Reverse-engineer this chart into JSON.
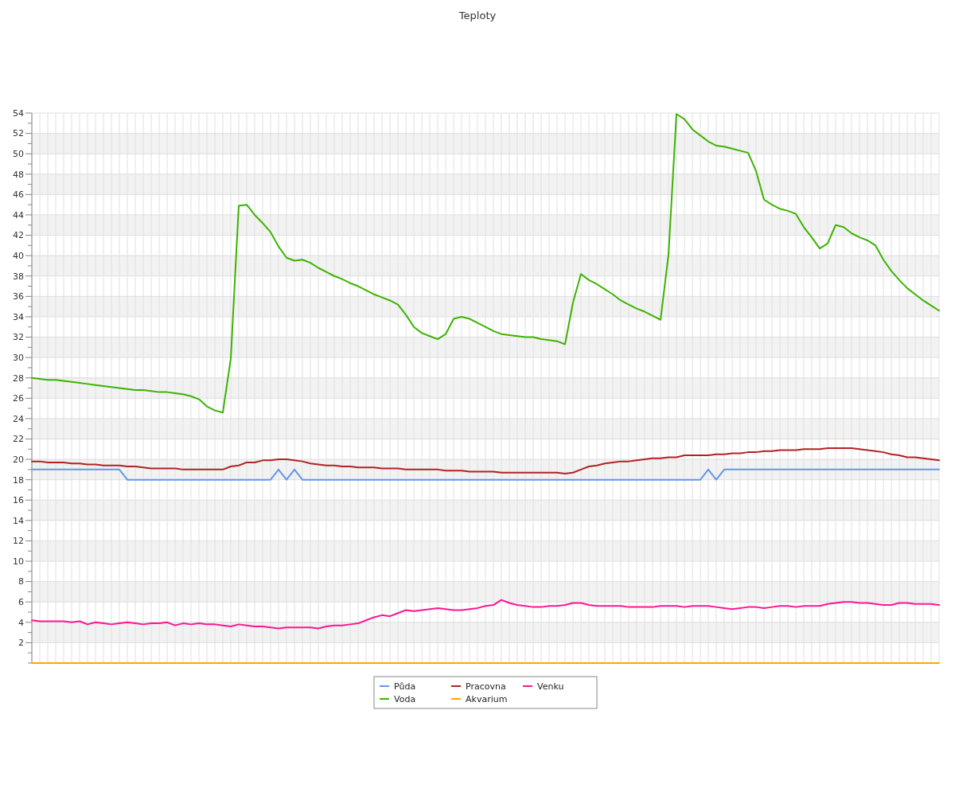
{
  "chart_data": {
    "type": "line",
    "title": "Teploty",
    "categories": [
      null,
      null,
      null,
      null,
      null,
      null,
      null,
      null,
      null,
      null,
      null,
      null,
      null,
      null,
      null,
      null,
      null,
      null,
      null,
      null,
      null,
      null,
      null,
      null,
      null,
      null,
      null,
      null,
      null,
      null,
      null,
      null,
      null,
      null,
      null,
      null,
      null,
      null,
      null,
      null,
      null,
      null,
      null,
      null,
      null,
      null,
      null,
      null,
      null,
      null,
      null,
      null,
      null,
      null,
      null,
      null,
      null,
      null,
      null,
      null,
      null,
      null,
      null,
      null,
      null,
      null,
      null,
      null,
      null,
      null,
      null,
      null,
      null,
      null,
      null,
      null,
      null,
      null,
      null,
      null,
      null,
      null,
      null,
      null,
      null,
      null,
      null,
      null,
      null,
      null,
      null,
      null,
      null,
      null,
      null,
      null,
      null,
      null,
      null,
      null,
      null,
      null,
      null,
      null,
      null,
      null,
      null,
      null,
      null,
      null,
      null,
      null,
      null,
      null,
      null
    ],
    "ylim": [
      0,
      54
    ],
    "yticks": [
      {
        "value": 0,
        "label": null
      },
      {
        "value": 1,
        "label": null
      },
      2,
      {
        "value": 3,
        "label": null
      },
      4,
      {
        "value": 5,
        "label": null
      },
      6,
      {
        "value": 7,
        "label": null
      },
      8,
      {
        "value": 9,
        "label": null
      },
      10,
      {
        "value": 11,
        "label": null
      },
      12,
      {
        "value": 13,
        "label": null
      },
      14,
      {
        "value": 15,
        "label": null
      },
      16,
      {
        "value": 17,
        "label": null
      },
      18,
      {
        "value": 19,
        "label": null
      },
      20,
      {
        "value": 21,
        "label": null
      },
      22,
      {
        "value": 23,
        "label": null
      },
      24,
      {
        "value": 25,
        "label": null
      },
      26,
      {
        "value": 27,
        "label": null
      },
      28,
      {
        "value": 29,
        "label": null
      },
      30,
      {
        "value": 31,
        "label": null
      },
      32,
      {
        "value": 33,
        "label": null
      },
      34,
      {
        "value": 35,
        "label": null
      },
      36,
      {
        "value": 37,
        "label": null
      },
      38,
      {
        "value": 39,
        "label": null
      },
      40,
      {
        "value": 41,
        "label": null
      },
      42,
      {
        "value": 43,
        "label": null
      },
      44,
      {
        "value": 45,
        "label": null
      },
      46,
      {
        "value": 47,
        "label": null
      },
      48,
      {
        "value": 49,
        "label": null
      },
      50,
      {
        "value": 51,
        "label": null
      },
      52,
      {
        "value": 53,
        "label": null
      },
      54
    ],
    "tick_labels": "y",
    "grid": true,
    "legend": "bottom",
    "marker": "none",
    "line_style": "solid",
    "series": [
      {
        "name": "Půda",
        "color": "#6495ed",
        "values": [
          19,
          19,
          19,
          19,
          19,
          19,
          19,
          19,
          19,
          19,
          19,
          19,
          18,
          18,
          18,
          18,
          18,
          18,
          18,
          18,
          18,
          18,
          18,
          18,
          18,
          18,
          18,
          18,
          18,
          18,
          18,
          19,
          18,
          19,
          18,
          18,
          18,
          18,
          18,
          18,
          18,
          18,
          18,
          18,
          18,
          18,
          18,
          18,
          18,
          18,
          18,
          18,
          18,
          18,
          18,
          18,
          18,
          18,
          18,
          18,
          18,
          18,
          18,
          18,
          18,
          18,
          18,
          18,
          18,
          18,
          18,
          18,
          18,
          18,
          18,
          18,
          18,
          18,
          18,
          18,
          18,
          18,
          18,
          18,
          18,
          19,
          18,
          19,
          19,
          19,
          19,
          19,
          19,
          19,
          19,
          19,
          19,
          19,
          19,
          19,
          19,
          19,
          19,
          19,
          19,
          19,
          19,
          19,
          19,
          19,
          19,
          19,
          19,
          19,
          19
        ]
      },
      {
        "name": "Voda",
        "color": "#3cb300",
        "values": [
          28.0,
          27.9,
          27.8,
          27.8,
          27.7,
          27.6,
          27.5,
          27.4,
          27.3,
          27.2,
          27.1,
          27.0,
          26.9,
          26.8,
          26.8,
          26.7,
          26.6,
          26.6,
          26.5,
          26.4,
          26.2,
          25.9,
          25.2,
          24.8,
          24.6,
          29.9,
          44.9,
          45.0,
          44.0,
          43.2,
          42.3,
          40.9,
          39.8,
          39.5,
          39.6,
          39.3,
          38.8,
          38.4,
          38.0,
          37.7,
          37.3,
          37.0,
          36.6,
          36.2,
          35.9,
          35.6,
          35.2,
          34.2,
          33.0,
          32.4,
          32.1,
          31.8,
          32.3,
          33.8,
          34.0,
          33.8,
          33.4,
          33.0,
          32.6,
          32.3,
          32.2,
          32.1,
          32.0,
          32.0,
          31.8,
          31.7,
          31.6,
          31.3,
          35.4,
          38.2,
          37.6,
          37.2,
          36.7,
          36.2,
          35.6,
          35.2,
          34.8,
          34.5,
          34.1,
          33.7,
          40.1,
          53.9,
          53.4,
          52.4,
          51.8,
          51.2,
          50.8,
          50.7,
          50.5,
          50.3,
          50.1,
          48.3,
          45.5,
          45.0,
          44.6,
          44.4,
          44.1,
          42.8,
          41.8,
          40.7,
          41.2,
          43.0,
          42.8,
          42.2,
          41.8,
          41.5,
          41.0,
          39.6,
          38.5,
          37.6,
          36.8,
          36.2,
          35.6,
          35.1,
          34.6
        ]
      },
      {
        "name": "Pracovna",
        "color": "#b22222",
        "values": [
          19.8,
          19.8,
          19.7,
          19.7,
          19.7,
          19.6,
          19.6,
          19.5,
          19.5,
          19.4,
          19.4,
          19.4,
          19.3,
          19.3,
          19.2,
          19.1,
          19.1,
          19.1,
          19.1,
          19.0,
          19.0,
          19.0,
          19.0,
          19.0,
          19.0,
          19.3,
          19.4,
          19.7,
          19.7,
          19.9,
          19.9,
          20.0,
          20.0,
          19.9,
          19.8,
          19.6,
          19.5,
          19.4,
          19.4,
          19.3,
          19.3,
          19.2,
          19.2,
          19.2,
          19.1,
          19.1,
          19.1,
          19.0,
          19.0,
          19.0,
          19.0,
          19.0,
          18.9,
          18.9,
          18.9,
          18.8,
          18.8,
          18.8,
          18.8,
          18.7,
          18.7,
          18.7,
          18.7,
          18.7,
          18.7,
          18.7,
          18.7,
          18.6,
          18.7,
          19.0,
          19.3,
          19.4,
          19.6,
          19.7,
          19.8,
          19.8,
          19.9,
          20.0,
          20.1,
          20.1,
          20.2,
          20.2,
          20.4,
          20.4,
          20.4,
          20.4,
          20.5,
          20.5,
          20.6,
          20.6,
          20.7,
          20.7,
          20.8,
          20.8,
          20.9,
          20.9,
          20.9,
          21.0,
          21.0,
          21.0,
          21.1,
          21.1,
          21.1,
          21.1,
          21.0,
          20.9,
          20.8,
          20.7,
          20.5,
          20.4,
          20.2,
          20.2,
          20.1,
          20.0,
          19.9
        ]
      },
      {
        "name": "Akvarium",
        "color": "#ffa500",
        "values": [
          0,
          0,
          0,
          0,
          0,
          0,
          0,
          0,
          0,
          0,
          0,
          0,
          0,
          0,
          0,
          0,
          0,
          0,
          0,
          0,
          0,
          0,
          0,
          0,
          0,
          0,
          0,
          0,
          0,
          0,
          0,
          0,
          0,
          0,
          0,
          0,
          0,
          0,
          0,
          0,
          0,
          0,
          0,
          0,
          0,
          0,
          0,
          0,
          0,
          0,
          0,
          0,
          0,
          0,
          0,
          0,
          0,
          0,
          0,
          0,
          0,
          0,
          0,
          0,
          0,
          0,
          0,
          0,
          0,
          0,
          0,
          0,
          0,
          0,
          0,
          0,
          0,
          0,
          0,
          0,
          0,
          0,
          0,
          0,
          0,
          0,
          0,
          0,
          0,
          0,
          0,
          0,
          0,
          0,
          0,
          0,
          0,
          0,
          0,
          0,
          0,
          0,
          0,
          0,
          0,
          0,
          0,
          0,
          0,
          0,
          0,
          0,
          0,
          0,
          0
        ]
      },
      {
        "name": "Venku",
        "color": "#ff1493",
        "values": [
          4.2,
          4.1,
          4.1,
          4.1,
          4.1,
          4.0,
          4.1,
          3.8,
          4.0,
          3.9,
          3.8,
          3.9,
          4.0,
          3.9,
          3.8,
          3.9,
          3.9,
          4.0,
          3.7,
          3.9,
          3.8,
          3.9,
          3.8,
          3.8,
          3.7,
          3.6,
          3.8,
          3.7,
          3.6,
          3.6,
          3.5,
          3.4,
          3.5,
          3.5,
          3.5,
          3.5,
          3.4,
          3.6,
          3.7,
          3.7,
          3.8,
          3.9,
          4.2,
          4.5,
          4.7,
          4.6,
          4.9,
          5.2,
          5.1,
          5.2,
          5.3,
          5.4,
          5.3,
          5.2,
          5.2,
          5.3,
          5.4,
          5.6,
          5.7,
          6.2,
          5.9,
          5.7,
          5.6,
          5.5,
          5.5,
          5.6,
          5.6,
          5.7,
          5.9,
          5.9,
          5.7,
          5.6,
          5.6,
          5.6,
          5.6,
          5.5,
          5.5,
          5.5,
          5.5,
          5.6,
          5.6,
          5.6,
          5.5,
          5.6,
          5.6,
          5.6,
          5.5,
          5.4,
          5.3,
          5.4,
          5.5,
          5.5,
          5.4,
          5.5,
          5.6,
          5.6,
          5.5,
          5.6,
          5.6,
          5.6,
          5.8,
          5.9,
          6.0,
          6.0,
          5.9,
          5.9,
          5.8,
          5.7,
          5.7,
          5.9,
          5.9,
          5.8,
          5.8,
          5.8,
          5.7
        ]
      }
    ]
  }
}
